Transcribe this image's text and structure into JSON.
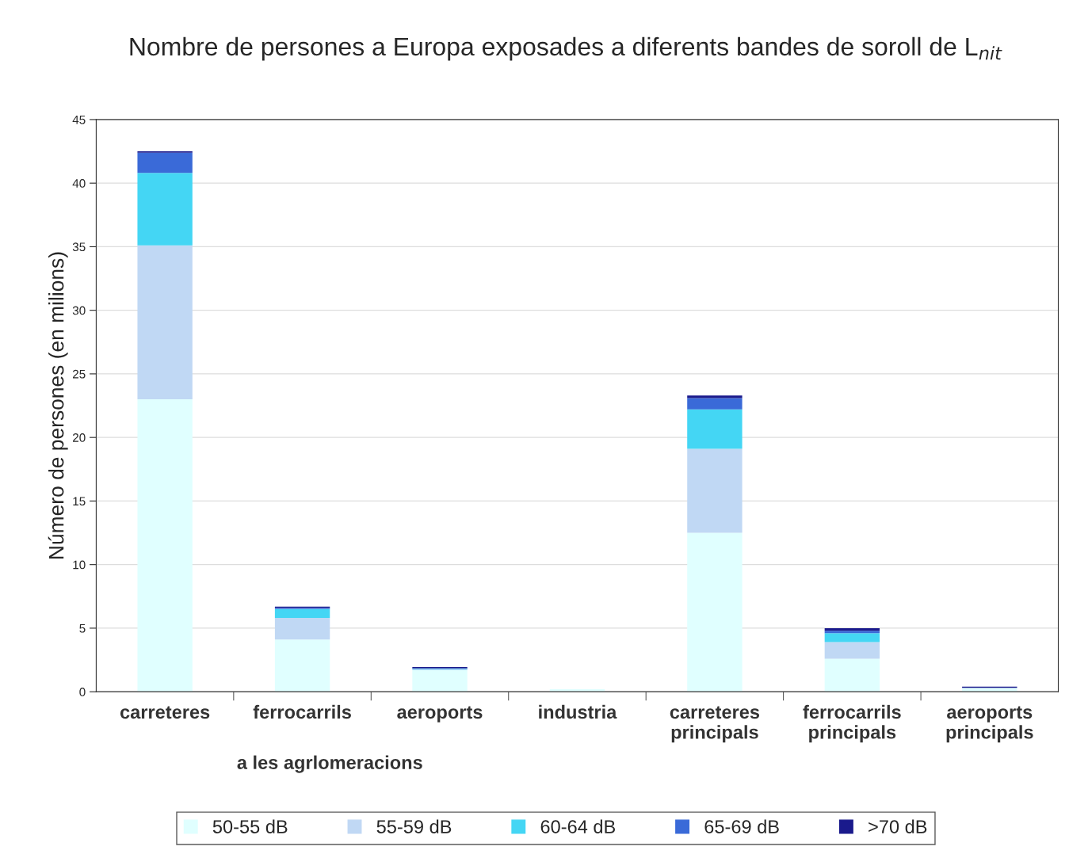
{
  "chart_data": {
    "type": "bar",
    "stacked": true,
    "title": "Nombre de persones a Europa exposades a diferents bandes de soroll de L$_{nit}$",
    "ylabel": "Número de persones (en milions)",
    "categories": [
      "carreteres",
      "ferrocarrils",
      "aeroports",
      "industria",
      "carreteres\nprincipals",
      "ferrocarrils\nprincipals",
      "aeroports\nprincipals"
    ],
    "series": [
      {
        "name": "50-55 dB",
        "color": "#e0ffff",
        "values": [
          23,
          4.1,
          1.7,
          0.2,
          12.5,
          2.6,
          0.3
        ]
      },
      {
        "name": "55-59 dB",
        "color": "#c0d8f4",
        "values": [
          12.1,
          1.7,
          0.05,
          null,
          6.6,
          1.3,
          null
        ]
      },
      {
        "name": "60-64 dB",
        "color": "#44d6f4",
        "values": [
          5.7,
          0.7,
          0.05,
          null,
          3.1,
          0.7,
          null
        ]
      },
      {
        "name": "65-69 dB",
        "color": "#3a6ad8",
        "values": [
          1.6,
          0.1,
          0.05,
          null,
          0.9,
          0.2,
          null
        ]
      },
      {
        "name": ">70 dB",
        "color": "#1a1a8c",
        "values": [
          0.1,
          0.1,
          0.1,
          null,
          0.2,
          0.2,
          0.1
        ]
      }
    ],
    "ylim": [
      0,
      45
    ],
    "yticks": [
      0,
      5,
      10,
      15,
      20,
      25,
      30,
      35,
      40,
      45
    ],
    "grid": "y",
    "legend": "bottom",
    "annotations": [
      "a les agrlomeracions"
    ]
  }
}
